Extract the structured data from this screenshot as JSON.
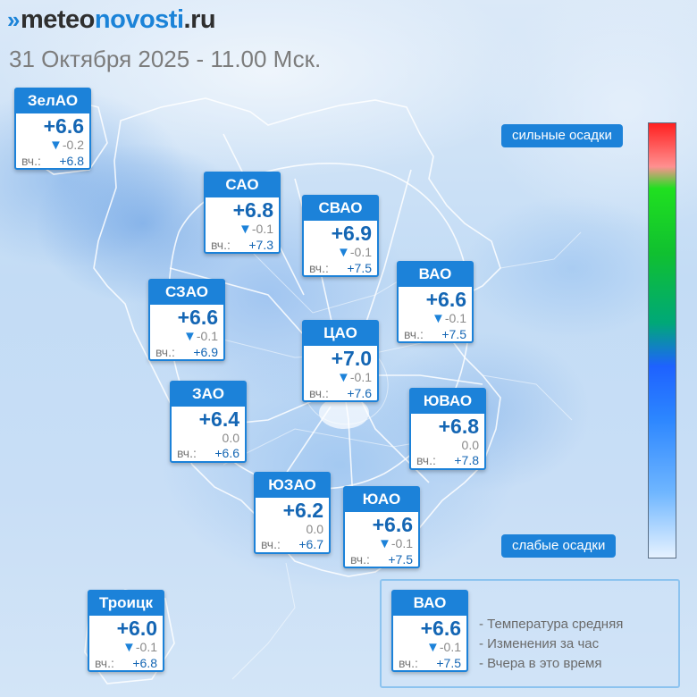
{
  "header": {
    "logo_prefix": "meteo",
    "logo_highlight": "novosti",
    "logo_suffix": ".ru",
    "date_time": "31 Октября 2025 - 11.00 Мск."
  },
  "districts": [
    {
      "name": "ЗелАО",
      "temp": "+6.6",
      "change": "-0.2",
      "change_dir": "down",
      "yesterday_label": "вч.:",
      "yesterday": "+6.8"
    },
    {
      "name": "САО",
      "temp": "+6.8",
      "change": "-0.1",
      "change_dir": "down",
      "yesterday_label": "вч.:",
      "yesterday": "+7.3"
    },
    {
      "name": "СВАО",
      "temp": "+6.9",
      "change": "-0.1",
      "change_dir": "down",
      "yesterday_label": "вч.:",
      "yesterday": "+7.5"
    },
    {
      "name": "ВАО",
      "temp": "+6.6",
      "change": "-0.1",
      "change_dir": "down",
      "yesterday_label": "вч.:",
      "yesterday": "+7.5"
    },
    {
      "name": "СЗАО",
      "temp": "+6.6",
      "change": "-0.1",
      "change_dir": "down",
      "yesterday_label": "вч.:",
      "yesterday": "+6.9"
    },
    {
      "name": "ЦАО",
      "temp": "+7.0",
      "change": "-0.1",
      "change_dir": "down",
      "yesterday_label": "вч.:",
      "yesterday": "+7.6"
    },
    {
      "name": "ЗАО",
      "temp": "+6.4",
      "change": "0.0",
      "change_dir": "none",
      "yesterday_label": "вч.:",
      "yesterday": "+6.6"
    },
    {
      "name": "ЮВАО",
      "temp": "+6.8",
      "change": "0.0",
      "change_dir": "none",
      "yesterday_label": "вч.:",
      "yesterday": "+7.8"
    },
    {
      "name": "ЮЗАО",
      "temp": "+6.2",
      "change": "0.0",
      "change_dir": "none",
      "yesterday_label": "вч.:",
      "yesterday": "+6.7"
    },
    {
      "name": "ЮАО",
      "temp": "+6.6",
      "change": "-0.1",
      "change_dir": "down",
      "yesterday_label": "вч.:",
      "yesterday": "+7.5"
    },
    {
      "name": "Троицк",
      "temp": "+6.0",
      "change": "-0.1",
      "change_dir": "down",
      "yesterday_label": "вч.:",
      "yesterday": "+6.8"
    }
  ],
  "precip_scale": {
    "top_label": "сильные осадки",
    "bottom_label": "слабые осадки"
  },
  "legend": {
    "sample": {
      "name": "ВАО",
      "temp": "+6.6",
      "change": "-0.1",
      "change_dir": "down",
      "yesterday_label": "вч.:",
      "yesterday": "+7.5"
    },
    "items": [
      "- Температура средняя",
      "- Изменения за час",
      "- Вчера в это время"
    ]
  },
  "colors": {
    "accent": "#1c82d9",
    "temp_text": "#1466b4"
  }
}
